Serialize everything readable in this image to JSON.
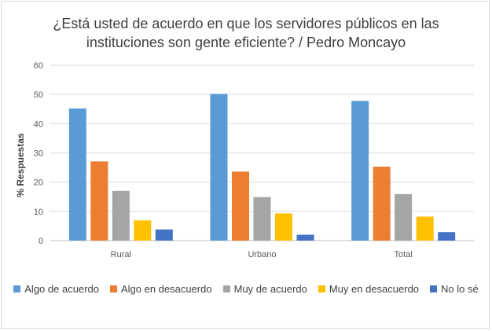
{
  "chart_data": {
    "type": "bar",
    "title_line1": "¿Está usted de acuerdo en que los servidores públicos en las",
    "title_line2": "instituciones son gente eficiente? / Pedro Moncayo",
    "xlabel": "",
    "ylabel": "% Respuestas",
    "ylim": [
      0,
      60
    ],
    "yticks": [
      0,
      10,
      20,
      30,
      40,
      50,
      60
    ],
    "grid": true,
    "legend_position": "bottom",
    "categories": [
      "Rural",
      "Urbano",
      "Total"
    ],
    "series": [
      {
        "name": "Algo de acuerdo",
        "color": "#5b9bd5",
        "values": [
          45.2,
          50.2,
          47.8
        ]
      },
      {
        "name": "Algo en desacuerdo",
        "color": "#ed7d31",
        "values": [
          27.1,
          23.6,
          25.3
        ]
      },
      {
        "name": "Muy de acuerdo",
        "color": "#a5a5a5",
        "values": [
          17.0,
          14.9,
          15.9
        ]
      },
      {
        "name": "Muy en desacuerdo",
        "color": "#ffc000",
        "values": [
          6.9,
          9.3,
          8.2
        ]
      },
      {
        "name": "No lo sé",
        "color": "#4472c4",
        "values": [
          3.8,
          2.0,
          2.9
        ]
      }
    ]
  }
}
